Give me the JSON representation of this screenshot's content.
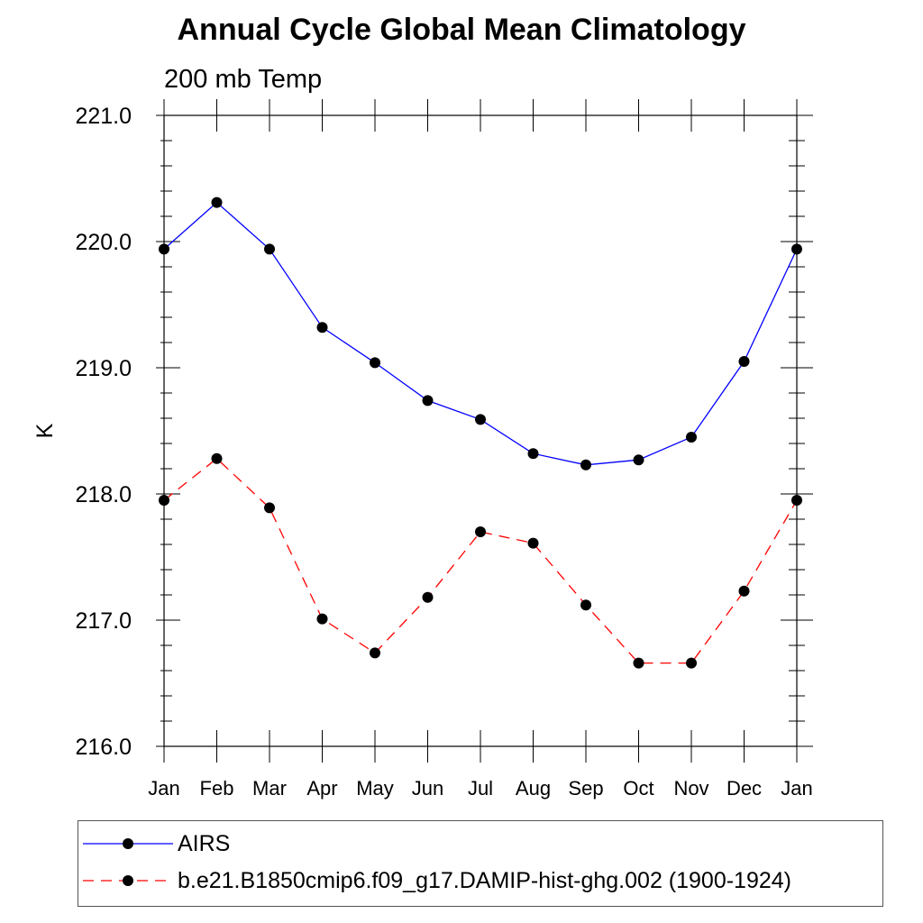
{
  "chart_data": {
    "type": "line",
    "title": "Annual Cycle Global Mean Climatology",
    "subtitle": "200 mb Temp",
    "xlabel": "",
    "ylabel": "K",
    "categories": [
      "Jan",
      "Feb",
      "Mar",
      "Apr",
      "May",
      "Jun",
      "Jul",
      "Aug",
      "Sep",
      "Oct",
      "Nov",
      "Dec",
      "Jan"
    ],
    "ylim": [
      216.0,
      221.0
    ],
    "yticks": [
      "216.0",
      "217.0",
      "218.0",
      "219.0",
      "220.0",
      "221.0"
    ],
    "series": [
      {
        "name": "AIRS",
        "color": "#0000ff",
        "dashed": false,
        "values": [
          219.94,
          220.31,
          219.94,
          219.32,
          219.04,
          218.74,
          218.59,
          218.32,
          218.23,
          218.27,
          218.45,
          219.05,
          219.94
        ]
      },
      {
        "name": "b.e21.B1850cmip6.f09_g17.DAMIP-hist-ghg.002 (1900-1924)",
        "color": "#ff0000",
        "dashed": true,
        "values": [
          217.95,
          218.28,
          217.89,
          217.01,
          216.74,
          217.18,
          217.7,
          217.61,
          217.12,
          216.66,
          216.66,
          217.23,
          217.95
        ]
      }
    ]
  }
}
